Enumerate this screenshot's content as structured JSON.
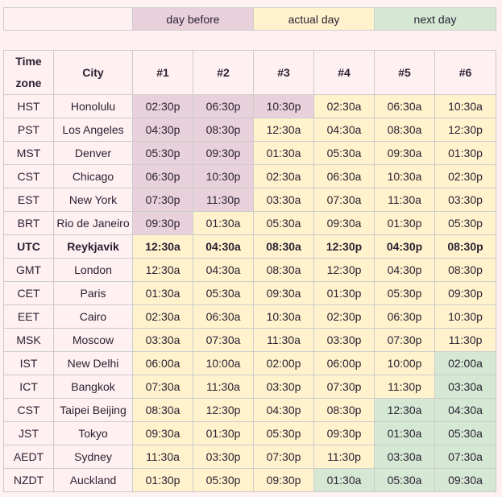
{
  "legend": {
    "day_before": "day before",
    "actual_day": "actual day",
    "next_day": "next day"
  },
  "colors": {
    "day_before": "#e9d1dc",
    "actual_day": "#fff2cc",
    "next_day": "#d5e8d4",
    "background": "#fff0f1"
  },
  "headers": {
    "timezone": "Time zone",
    "city": "City",
    "cols": [
      "#1",
      "#2",
      "#3",
      "#4",
      "#5",
      "#6"
    ]
  },
  "rows": [
    {
      "tz": "HST",
      "city": "Honolulu",
      "times": [
        "02:30p",
        "06:30p",
        "10:30p",
        "02:30a",
        "06:30a",
        "10:30a"
      ],
      "days": "bbbaaa"
    },
    {
      "tz": "PST",
      "city": "Los Angeles",
      "times": [
        "04:30p",
        "08:30p",
        "12:30a",
        "04:30a",
        "08:30a",
        "12:30p"
      ],
      "days": "bbaaaa"
    },
    {
      "tz": "MST",
      "city": "Denver",
      "times": [
        "05:30p",
        "09:30p",
        "01:30a",
        "05:30a",
        "09:30a",
        "01:30p"
      ],
      "days": "bbaaaa"
    },
    {
      "tz": "CST",
      "city": "Chicago",
      "times": [
        "06:30p",
        "10:30p",
        "02:30a",
        "06:30a",
        "10:30a",
        "02:30p"
      ],
      "days": "bbaaaa"
    },
    {
      "tz": "EST",
      "city": "New York",
      "times": [
        "07:30p",
        "11:30p",
        "03:30a",
        "07:30a",
        "11:30a",
        "03:30p"
      ],
      "days": "bbaaaa"
    },
    {
      "tz": "BRT",
      "city": "Rio de Janeiro",
      "times": [
        "09:30p",
        "01:30a",
        "05:30a",
        "09:30a",
        "01:30p",
        "05:30p"
      ],
      "days": "baaaaa"
    },
    {
      "tz": "UTC",
      "city": "Reykjavik",
      "times": [
        "12:30a",
        "04:30a",
        "08:30a",
        "12:30p",
        "04:30p",
        "08:30p"
      ],
      "days": "aaaaaa",
      "bold": true
    },
    {
      "tz": "GMT",
      "city": "London",
      "times": [
        "12:30a",
        "04:30a",
        "08:30a",
        "12:30p",
        "04:30p",
        "08:30p"
      ],
      "days": "aaaaaa"
    },
    {
      "tz": "CET",
      "city": "Paris",
      "times": [
        "01:30a",
        "05:30a",
        "09:30a",
        "01:30p",
        "05:30p",
        "09:30p"
      ],
      "days": "aaaaaa"
    },
    {
      "tz": "EET",
      "city": "Cairo",
      "times": [
        "02:30a",
        "06:30a",
        "10:30a",
        "02:30p",
        "06:30p",
        "10:30p"
      ],
      "days": "aaaaaa"
    },
    {
      "tz": "MSK",
      "city": "Moscow",
      "times": [
        "03:30a",
        "07:30a",
        "11:30a",
        "03:30p",
        "07:30p",
        "11:30p"
      ],
      "days": "aaaaaa"
    },
    {
      "tz": "IST",
      "city": "New Delhi",
      "times": [
        "06:00a",
        "10:00a",
        "02:00p",
        "06:00p",
        "10:00p",
        "02:00a"
      ],
      "days": "aaaaan"
    },
    {
      "tz": "ICT",
      "city": "Bangkok",
      "times": [
        "07:30a",
        "11:30a",
        "03:30p",
        "07:30p",
        "11:30p",
        "03:30a"
      ],
      "days": "aaaaan"
    },
    {
      "tz": "CST",
      "city": "Taipei Beijing",
      "times": [
        "08:30a",
        "12:30p",
        "04:30p",
        "08:30p",
        "12:30a",
        "04:30a"
      ],
      "days": "aaaann"
    },
    {
      "tz": "JST",
      "city": "Tokyo",
      "times": [
        "09:30a",
        "01:30p",
        "05:30p",
        "09:30p",
        "01:30a",
        "05:30a"
      ],
      "days": "aaaann"
    },
    {
      "tz": "AEDT",
      "city": "Sydney",
      "times": [
        "11:30a",
        "03:30p",
        "07:30p",
        "11:30p",
        "03:30a",
        "07:30a"
      ],
      "days": "aaaann"
    },
    {
      "tz": "NZDT",
      "city": "Auckland",
      "times": [
        "01:30p",
        "05:30p",
        "09:30p",
        "01:30a",
        "05:30a",
        "09:30a"
      ],
      "days": "aaannn"
    }
  ]
}
